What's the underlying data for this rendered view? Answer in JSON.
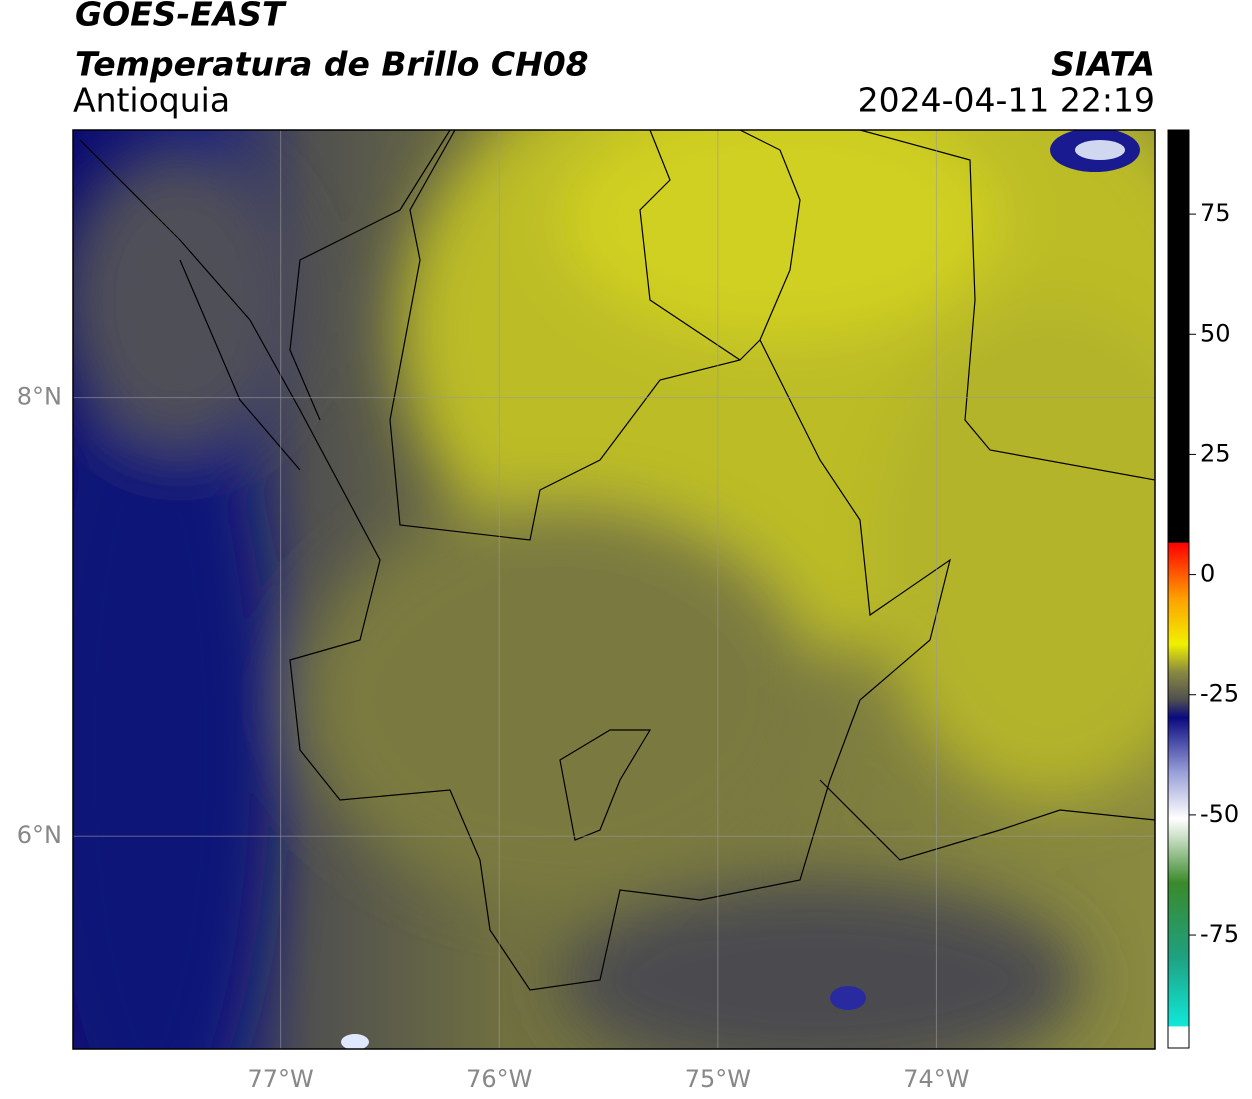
{
  "header": {
    "title": "GOES-EAST",
    "subtitle": "Temperatura de Brillo CH08",
    "region": "Antioquia",
    "source": "SIATA",
    "datetime": "2024-04-11 22:19"
  },
  "map": {
    "lon_range": [
      -77.95,
      -73.0
    ],
    "lat_range": [
      5.03,
      9.22
    ],
    "lon_ticks": [
      {
        "value": -77,
        "label": "77°W"
      },
      {
        "value": -76,
        "label": "76°W"
      },
      {
        "value": -75,
        "label": "75°W"
      },
      {
        "value": -74,
        "label": "74°W"
      }
    ],
    "lat_ticks": [
      {
        "value": 6,
        "label": "6°N"
      },
      {
        "value": 8,
        "label": "8°N"
      }
    ],
    "grid": true
  },
  "colorbar": {
    "range": [
      -98.5,
      92.5
    ],
    "ticks": [
      75,
      50,
      25,
      0,
      -25,
      -50,
      -75
    ]
  }
}
